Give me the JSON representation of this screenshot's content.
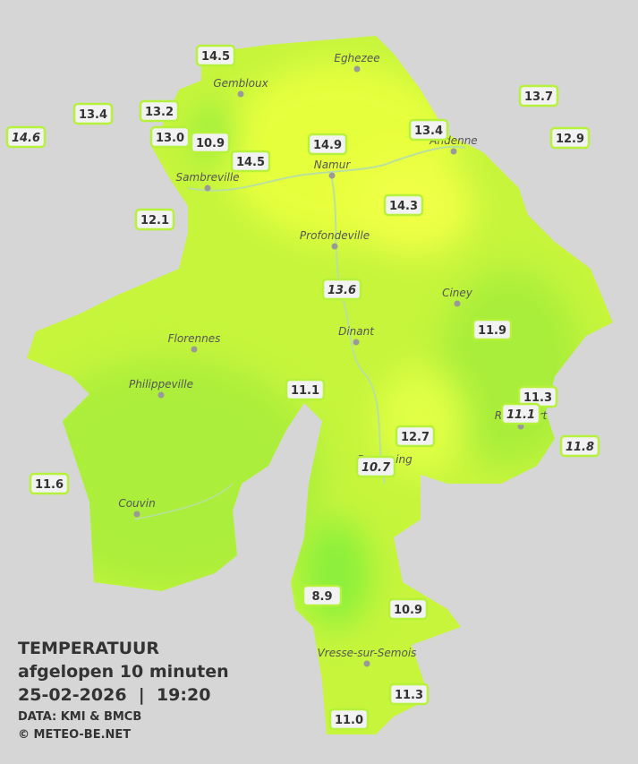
{
  "cities": [
    {
      "name": "Eghezee"
    },
    {
      "name": "Gembloux"
    },
    {
      "name": "Andenne"
    },
    {
      "name": "Namur"
    },
    {
      "name": "Sambreville"
    },
    {
      "name": "Profondeville"
    },
    {
      "name": "Ciney"
    },
    {
      "name": "Dinant"
    },
    {
      "name": "Florennes"
    },
    {
      "name": "Philippeville"
    },
    {
      "name": "Beauraing"
    },
    {
      "name": "Rochefort"
    },
    {
      "name": "Couvin"
    },
    {
      "name": "Vresse-sur-Semois"
    }
  ],
  "stations": [
    {
      "label": "14.5"
    },
    {
      "label": "13.4"
    },
    {
      "label": "13.2"
    },
    {
      "label": "14.6",
      "italic": true
    },
    {
      "label": "13.0"
    },
    {
      "label": "10.9"
    },
    {
      "label": "14.5"
    },
    {
      "label": "14.9"
    },
    {
      "label": "13.4"
    },
    {
      "label": "13.7"
    },
    {
      "label": "12.9"
    },
    {
      "label": "14.3"
    },
    {
      "label": "12.1"
    },
    {
      "label": "13.6",
      "italic": true
    },
    {
      "label": "11.9"
    },
    {
      "label": "11.1"
    },
    {
      "label": "11.3"
    },
    {
      "label": "11.1",
      "italic": true
    },
    {
      "label": "11.8",
      "italic": true
    },
    {
      "label": "12.7"
    },
    {
      "label": "10.7",
      "italic": true
    },
    {
      "label": "11.6"
    },
    {
      "label": "8.9"
    },
    {
      "label": "10.9"
    },
    {
      "label": "11.3"
    },
    {
      "label": "11.0"
    }
  ],
  "footer": {
    "title": "TEMPERATUUR",
    "subtitle": "afgelopen 10 minuten",
    "datetime": "25-02-2026  |  19:20",
    "source": "DATA: KMI & BMCB",
    "copyright": "© METEO-BE.NET"
  }
}
